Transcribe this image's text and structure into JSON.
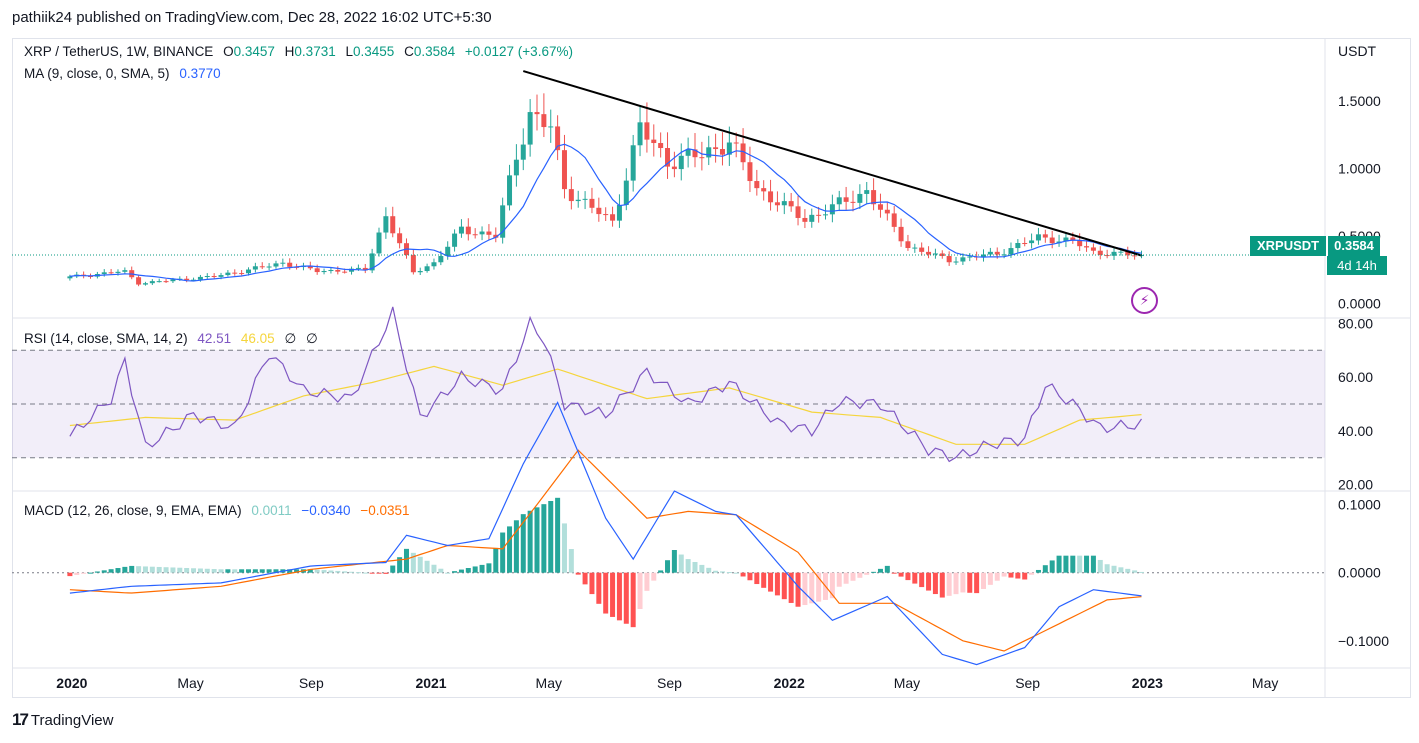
{
  "header": {
    "published": "pathiik24 published on TradingView.com, Dec 28, 2022 16:02 UTC+5:30"
  },
  "legend": {
    "symbol": "XRP / TetherUS, 1W, BINANCE",
    "o_label": "O",
    "o": "0.3457",
    "h_label": "H",
    "h": "0.3731",
    "l_label": "L",
    "l": "0.3455",
    "c_label": "C",
    "c": "0.3584",
    "change": "+0.0127 (+3.67%)",
    "ma_label": "MA (9, close, 0, SMA, 5)",
    "ma_value": "0.3770",
    "rsi_label": "RSI (14, close, SMA, 14, 2)",
    "rsi_value": "42.51",
    "rsi_ma": "46.05",
    "rsi_extra1": "∅",
    "rsi_extra2": "∅",
    "macd_label": "MACD (12, 26, close, 9, EMA, EMA)",
    "macd_hist": "0.0011",
    "macd_line": "−0.0340",
    "macd_signal": "−0.0351"
  },
  "price_tag": {
    "symbol": "XRPUSDT",
    "price": "0.3584",
    "countdown": "4d 14h"
  },
  "footer": {
    "brand": "TradingView",
    "logo_mark": "17"
  },
  "icons": {
    "alert": "lightning-bolt-icon"
  },
  "colors": {
    "up": "#26a69a",
    "down": "#ef5350",
    "ma": "#2962ff",
    "rsi": "#7e57c2",
    "rsi_ma": "#f5d53d",
    "macd": "#2962ff",
    "signal": "#ff6d00"
  },
  "chart_data": {
    "type": "candlestick",
    "currency": "USDT",
    "price_axis": {
      "ticks": [
        "1.5000",
        "1.0000",
        "0.5000",
        "0.0000"
      ],
      "ylim": [
        -0.1,
        1.95
      ]
    },
    "rsi_axis": {
      "ticks": [
        "80.00",
        "60.00",
        "40.00",
        "20.00"
      ],
      "ylim": [
        18,
        82
      ],
      "bands": [
        70,
        50,
        30
      ]
    },
    "macd_axis": {
      "ticks": [
        "0.1000",
        "0.0000",
        "−0.1000"
      ],
      "ylim": [
        -0.14,
        0.12
      ]
    },
    "time_axis": [
      "2020",
      "May",
      "Sep",
      "2021",
      "May",
      "Sep",
      "2022",
      "May",
      "Sep",
      "2023",
      "May"
    ],
    "trendline": {
      "from": [
        "2021-04-05",
        1.72
      ],
      "to": [
        "2022-12-26",
        0.355
      ]
    },
    "last_price": 0.3584,
    "price_anchors": [
      [
        "2019-12-30",
        0.19
      ],
      [
        "2020-03-01",
        0.24
      ],
      [
        "2020-03-16",
        0.15
      ],
      [
        "2020-06-01",
        0.2
      ],
      [
        "2020-08-10",
        0.3
      ],
      [
        "2020-09-14",
        0.24
      ],
      [
        "2020-11-02",
        0.25
      ],
      [
        "2020-11-23",
        0.65
      ],
      [
        "2020-12-21",
        0.23
      ],
      [
        "2021-01-11",
        0.3
      ],
      [
        "2021-02-08",
        0.55
      ],
      [
        "2021-03-15",
        0.5
      ],
      [
        "2021-04-05",
        1.1
      ],
      [
        "2021-04-19",
        1.4
      ],
      [
        "2021-05-10",
        1.3
      ],
      [
        "2021-05-24",
        0.85
      ],
      [
        "2021-07-12",
        0.6
      ],
      [
        "2021-08-09",
        1.3
      ],
      [
        "2021-09-06",
        1.05
      ],
      [
        "2021-10-11",
        1.1
      ],
      [
        "2021-11-08",
        1.2
      ],
      [
        "2021-12-06",
        0.85
      ],
      [
        "2022-01-24",
        0.62
      ],
      [
        "2022-03-28",
        0.83
      ],
      [
        "2022-05-09",
        0.42
      ],
      [
        "2022-06-20",
        0.32
      ],
      [
        "2022-08-08",
        0.37
      ],
      [
        "2022-09-19",
        0.49
      ],
      [
        "2022-10-24",
        0.46
      ],
      [
        "2022-11-14",
        0.38
      ],
      [
        "2022-12-26",
        0.3584
      ]
    ],
    "rsi_anchors": [
      [
        "2019-12-30",
        38
      ],
      [
        "2020-02-10",
        52
      ],
      [
        "2020-02-24",
        66
      ],
      [
        "2020-03-16",
        34
      ],
      [
        "2020-05-04",
        46
      ],
      [
        "2020-06-15",
        41
      ],
      [
        "2020-07-20",
        69
      ],
      [
        "2020-08-24",
        55
      ],
      [
        "2020-10-12",
        52
      ],
      [
        "2020-11-23",
        84
      ],
      [
        "2020-12-21",
        45
      ],
      [
        "2021-02-01",
        60
      ],
      [
        "2021-03-15",
        55
      ],
      [
        "2021-04-12",
        80
      ],
      [
        "2021-04-26",
        74
      ],
      [
        "2021-05-17",
        50
      ],
      [
        "2021-06-28",
        46
      ],
      [
        "2021-08-09",
        62
      ],
      [
        "2021-09-20",
        50
      ],
      [
        "2021-11-01",
        58
      ],
      [
        "2021-12-20",
        43
      ],
      [
        "2022-01-24",
        40
      ],
      [
        "2022-02-21",
        51
      ],
      [
        "2022-04-04",
        50
      ],
      [
        "2022-05-23",
        33
      ],
      [
        "2022-06-20",
        30
      ],
      [
        "2022-07-25",
        35
      ],
      [
        "2022-08-29",
        37
      ],
      [
        "2022-09-19",
        57
      ],
      [
        "2022-10-17",
        50
      ],
      [
        "2022-11-14",
        41
      ],
      [
        "2022-12-26",
        42.51
      ]
    ],
    "rsi_ma_anchors": [
      [
        "2019-12-30",
        42
      ],
      [
        "2020-03-16",
        45
      ],
      [
        "2020-06-15",
        44
      ],
      [
        "2020-08-24",
        53
      ],
      [
        "2020-11-02",
        58
      ],
      [
        "2021-01-04",
        64
      ],
      [
        "2021-03-15",
        57
      ],
      [
        "2021-05-10",
        63
      ],
      [
        "2021-08-09",
        52
      ],
      [
        "2021-11-01",
        56
      ],
      [
        "2022-01-24",
        47
      ],
      [
        "2022-04-04",
        45
      ],
      [
        "2022-06-20",
        35
      ],
      [
        "2022-08-29",
        35
      ],
      [
        "2022-10-24",
        44
      ],
      [
        "2022-12-26",
        46.05
      ]
    ],
    "macd_anchors": [
      [
        "2019-12-30",
        -0.03
      ],
      [
        "2020-03-01",
        -0.02
      ],
      [
        "2020-06-01",
        -0.015
      ],
      [
        "2020-09-01",
        0.01
      ],
      [
        "2020-11-16",
        0.015
      ],
      [
        "2020-12-07",
        0.055
      ],
      [
        "2021-01-18",
        0.04
      ],
      [
        "2021-03-01",
        0.05
      ],
      [
        "2021-04-05",
        0.16
      ],
      [
        "2021-05-10",
        0.25
      ],
      [
        "2021-06-28",
        0.08
      ],
      [
        "2021-07-26",
        0.02
      ],
      [
        "2021-09-06",
        0.12
      ],
      [
        "2021-10-18",
        0.09
      ],
      [
        "2021-11-08",
        0.085
      ],
      [
        "2022-01-10",
        -0.02
      ],
      [
        "2022-02-14",
        -0.07
      ],
      [
        "2022-04-11",
        -0.035
      ],
      [
        "2022-06-06",
        -0.12
      ],
      [
        "2022-07-11",
        -0.135
      ],
      [
        "2022-08-29",
        -0.11
      ],
      [
        "2022-10-03",
        -0.05
      ],
      [
        "2022-11-07",
        -0.025
      ],
      [
        "2022-12-26",
        -0.034
      ]
    ],
    "signal_anchors": [
      [
        "2019-12-30",
        -0.025
      ],
      [
        "2020-03-01",
        -0.03
      ],
      [
        "2020-06-01",
        -0.02
      ],
      [
        "2020-09-01",
        0.005
      ],
      [
        "2020-12-07",
        0.02
      ],
      [
        "2021-01-18",
        0.04
      ],
      [
        "2021-03-15",
        0.035
      ],
      [
        "2021-04-19",
        0.1
      ],
      [
        "2021-05-31",
        0.18
      ],
      [
        "2021-08-09",
        0.08
      ],
      [
        "2021-09-20",
        0.09
      ],
      [
        "2021-11-08",
        0.085
      ],
      [
        "2022-01-10",
        0.03
      ],
      [
        "2022-02-21",
        -0.045
      ],
      [
        "2022-04-18",
        -0.045
      ],
      [
        "2022-06-27",
        -0.1
      ],
      [
        "2022-08-08",
        -0.115
      ],
      [
        "2022-10-03",
        -0.075
      ],
      [
        "2022-11-21",
        -0.04
      ],
      [
        "2022-12-26",
        -0.0351
      ]
    ]
  }
}
